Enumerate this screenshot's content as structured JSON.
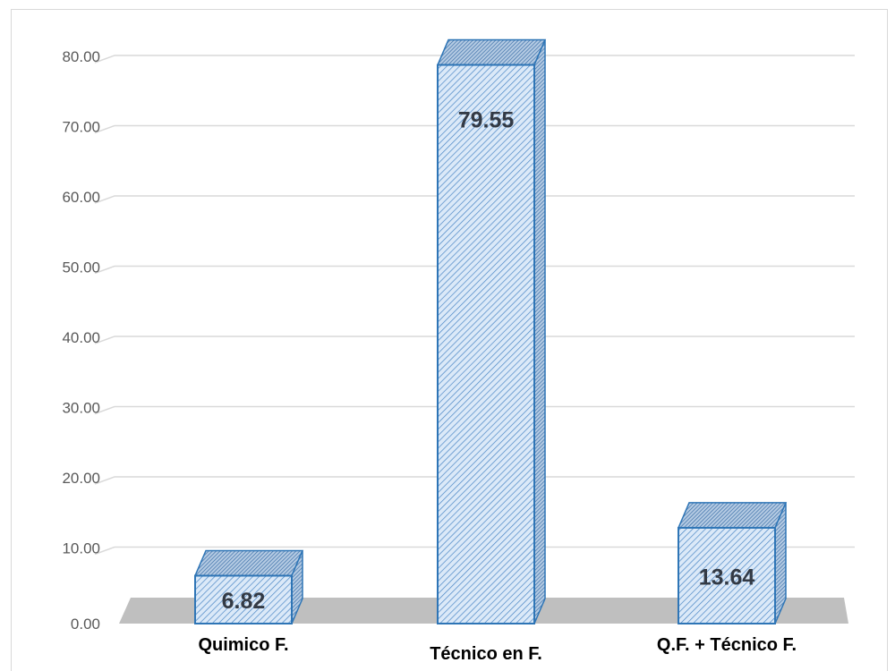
{
  "chart_data": {
    "type": "bar",
    "style": "3d-hatched",
    "categories": [
      "Quimico F.",
      "Técnico en F.",
      "Q.F. + Técnico F."
    ],
    "values": [
      6.82,
      79.55,
      13.64
    ],
    "data_labels": [
      "6.82",
      "79.55",
      "13.64"
    ],
    "y_ticks": [
      "0.00",
      "10.00",
      "20.00",
      "30.00",
      "40.00",
      "50.00",
      "60.00",
      "70.00",
      "80.00"
    ],
    "ylim": [
      0,
      80
    ],
    "title": "",
    "xlabel": "",
    "ylabel": "",
    "grid": true,
    "legend": "none"
  },
  "colors": {
    "bar_fill": "#dbe9f8",
    "bar_hatch": "#4a86c5",
    "bar_edge": "#2e75b6",
    "floor": "#bfbfbf",
    "gridline": "#d9d9d9"
  }
}
